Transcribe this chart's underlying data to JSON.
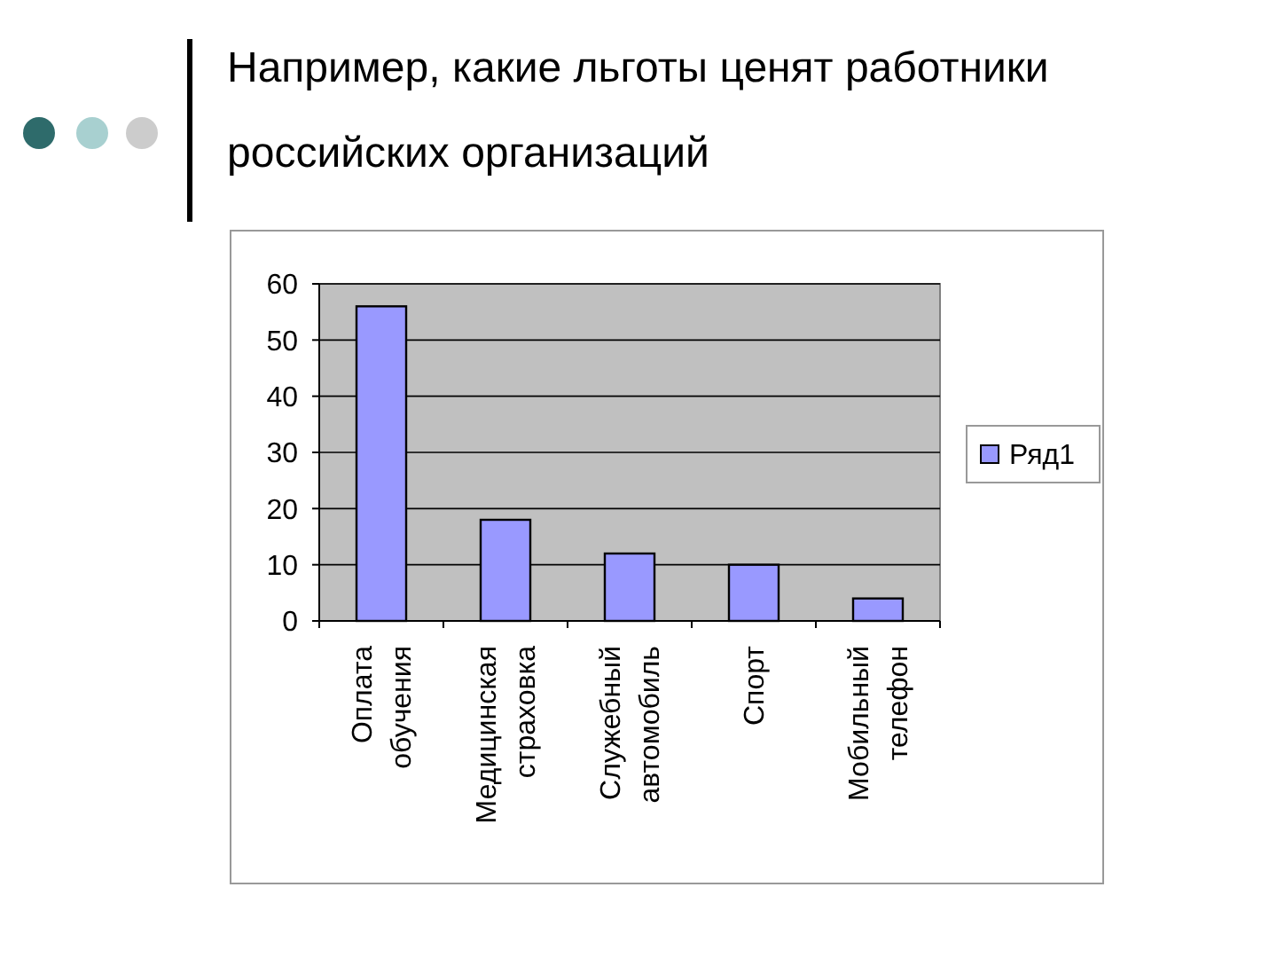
{
  "chart_data": {
    "type": "bar",
    "title": "Например, какие льготы ценят работники российских организаций",
    "categories": [
      "Оплата обучения",
      "Медицинская страховка",
      "Служебный автомобиль",
      "Спорт",
      "Мобильный телефон"
    ],
    "series": [
      {
        "name": "Ряд1",
        "color": "#9999ff",
        "values": [
          56,
          18,
          12,
          10,
          4
        ]
      }
    ],
    "ylim": [
      0,
      60
    ],
    "yticks": [
      0,
      10,
      20,
      30,
      40,
      50,
      60
    ],
    "grid": "y",
    "legend": "right"
  }
}
